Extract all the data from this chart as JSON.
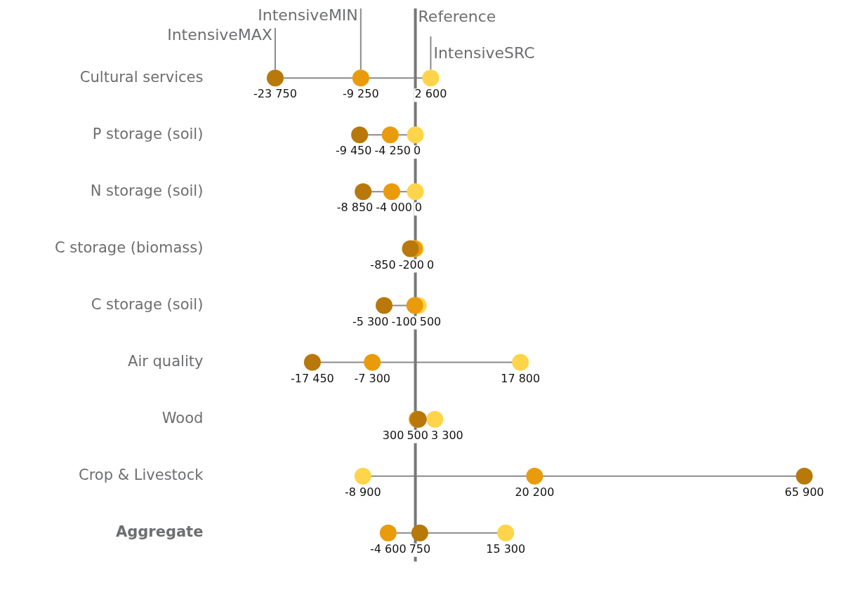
{
  "chart_data": {
    "type": "scatter",
    "orientation": "horizontal",
    "categories": [
      "Cultural services",
      "P storage (soil)",
      "N storage (soil)",
      "C storage (biomass)",
      "C storage (soil)",
      "Air quality",
      "Wood",
      "Crop & Livestock",
      "Aggregate"
    ],
    "series": [
      {
        "name": "IntensiveMAX",
        "color": "#b8780a",
        "values": [
          -23750,
          -9450,
          -8850,
          -850,
          -5300,
          -17450,
          500,
          65900,
          750
        ],
        "value_labels": [
          "-23 750",
          "-9 450",
          "-8 850",
          "-850",
          "-5 300",
          "-17 450",
          "500",
          "65 900",
          "750"
        ]
      },
      {
        "name": "IntensiveMIN",
        "color": "#e99b0c",
        "values": [
          -9250,
          -4250,
          -4000,
          -200,
          -100,
          -7300,
          300,
          20200,
          -4600
        ],
        "value_labels": [
          "-9 250",
          "-4 250",
          "-4 000",
          "-200",
          "-100",
          "-7 300",
          "300",
          "20 200",
          "-4 600"
        ]
      },
      {
        "name": "IntensiveSRC",
        "color": "#fed54a",
        "values": [
          2600,
          0,
          0,
          0,
          500,
          17800,
          3300,
          -8900,
          15300
        ],
        "value_labels": [
          "2 600",
          "0",
          "0",
          "0",
          "500",
          "17 800",
          "3 300",
          "-8 900",
          "15 300"
        ]
      }
    ],
    "tick_labels": "y",
    "marker": "circle",
    "ref_lines": [
      {
        "axis": "x",
        "value": 0,
        "label": "Reference",
        "color": "#777777"
      }
    ]
  }
}
